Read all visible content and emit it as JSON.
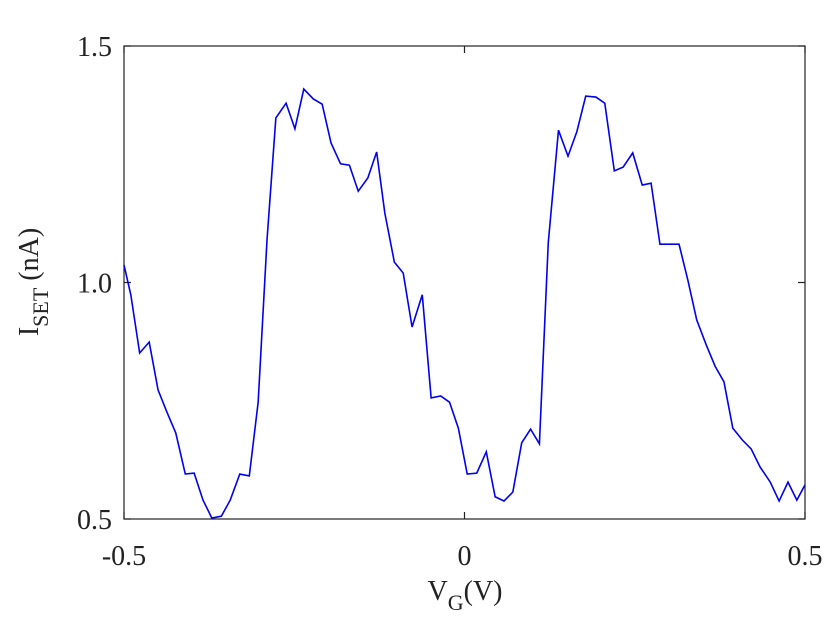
{
  "chart_data": {
    "type": "line",
    "x_label": {
      "main": "V",
      "sub": "G",
      "unit": "(V)"
    },
    "y_label": {
      "main": "I",
      "sub": "SET",
      "unit": "(nA)"
    },
    "xlim": [
      -0.5,
      0.5
    ],
    "xticks": [
      -0.5,
      0,
      0.5
    ],
    "ylim": [
      0.5,
      1.5
    ],
    "yticks": [
      0.5,
      {
        "value": 1,
        "label": "1.0"
      },
      1.5
    ],
    "x": [
      -0.5,
      -0.49,
      -0.477,
      -0.463,
      -0.45,
      -0.437,
      -0.424,
      -0.41,
      -0.397,
      -0.384,
      -0.371,
      -0.357,
      -0.344,
      -0.33,
      -0.316,
      -0.303,
      -0.29,
      -0.277,
      -0.262,
      -0.249,
      -0.236,
      -0.222,
      -0.209,
      -0.196,
      -0.182,
      -0.169,
      -0.156,
      -0.142,
      -0.129,
      -0.117,
      -0.103,
      -0.09,
      -0.077,
      -0.062,
      -0.049,
      -0.035,
      -0.022,
      -0.009,
      0.004,
      0.018,
      0.032,
      0.045,
      0.058,
      0.071,
      0.084,
      0.097,
      0.11,
      0.123,
      0.138,
      0.152,
      0.165,
      0.178,
      0.193,
      0.206,
      0.22,
      0.233,
      0.247,
      0.261,
      0.274,
      0.287,
      0.3,
      0.315,
      0.328,
      0.341,
      0.355,
      0.368,
      0.381,
      0.394,
      0.408,
      0.421,
      0.434,
      0.449,
      0.462,
      0.475,
      0.488,
      0.5
    ],
    "series": [
      {
        "color": "#0000ee",
        "values": [
          1.037,
          0.974,
          0.851,
          0.874,
          0.773,
          0.726,
          0.682,
          0.595,
          0.597,
          0.54,
          0.502,
          0.506,
          0.54,
          0.595,
          0.591,
          0.747,
          1.09,
          1.348,
          1.379,
          1.325,
          1.409,
          1.388,
          1.377,
          1.295,
          1.251,
          1.248,
          1.193,
          1.221,
          1.276,
          1.147,
          1.043,
          1.02,
          0.906,
          0.974,
          0.756,
          0.76,
          0.747,
          0.692,
          0.595,
          0.597,
          0.642,
          0.547,
          0.538,
          0.557,
          0.661,
          0.69,
          0.659,
          1.084,
          1.322,
          1.267,
          1.319,
          1.394,
          1.392,
          1.379,
          1.236,
          1.244,
          1.274,
          1.206,
          1.21,
          1.081,
          1.081,
          1.081,
          1.005,
          0.921,
          0.868,
          0.823,
          0.79,
          0.692,
          0.667,
          0.648,
          0.61,
          0.578,
          0.538,
          0.578,
          0.54,
          0.572
        ]
      }
    ]
  }
}
